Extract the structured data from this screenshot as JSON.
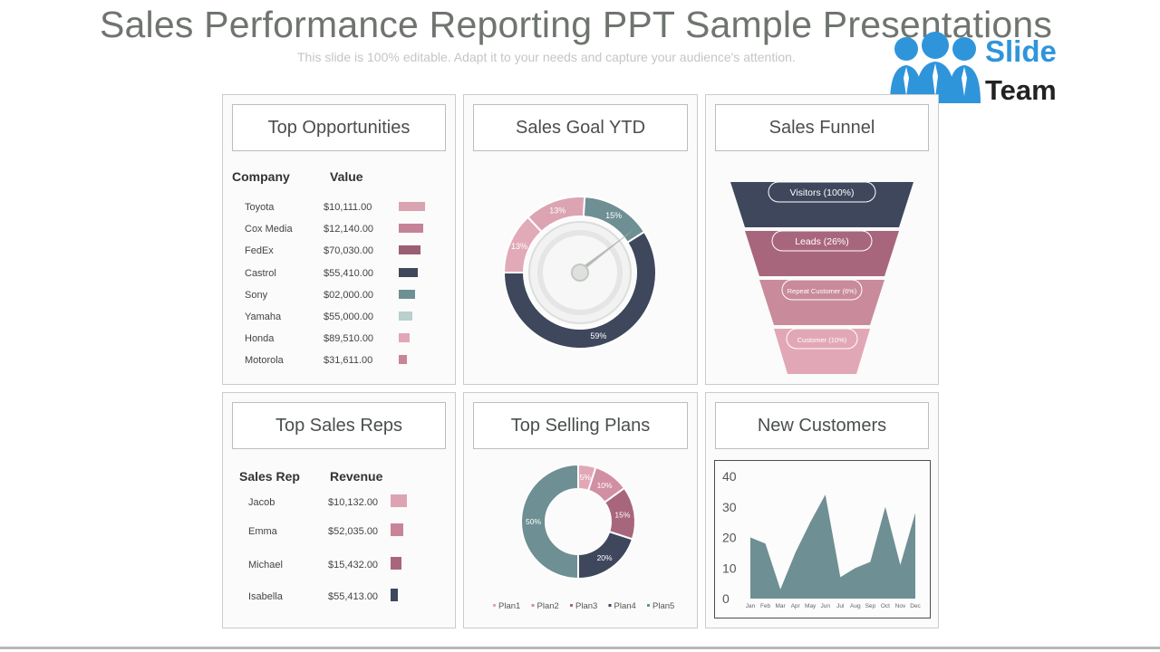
{
  "header": {
    "title": "Sales Performance Reporting PPT Sample Presentations",
    "subtitle": "This slide is 100% editable. Adapt it to your needs and capture your audience's attention."
  },
  "logo": {
    "line1": "Slide",
    "line2": "Team"
  },
  "colors": {
    "pink": "#d9a3b2",
    "rose": "#a8667c",
    "navy": "#3e475c",
    "teal": "#6e8f93",
    "mint": "#b9d0cd"
  },
  "top_opportunities": {
    "title": "Top Opportunities",
    "col_company": "Company",
    "col_value": "Value",
    "rows": [
      {
        "company": "Toyota",
        "value": "$10,111.00",
        "bar_fill": 1.0,
        "color": "#d9a3b2"
      },
      {
        "company": "Cox Media",
        "value": "$12,140.00",
        "bar_fill": 0.93,
        "color": "#c58398"
      },
      {
        "company": "FedEx",
        "value": "$70,030.00",
        "bar_fill": 0.83,
        "color": "#9c5e73"
      },
      {
        "company": "Castrol",
        "value": "$55,410.00",
        "bar_fill": 0.72,
        "color": "#3e475c"
      },
      {
        "company": "Sony",
        "value": "$02,000.00",
        "bar_fill": 0.62,
        "color": "#6e8f93"
      },
      {
        "company": "Yamaha",
        "value": "$55,000.00",
        "bar_fill": 0.52,
        "color": "#b9d0cd"
      },
      {
        "company": "Honda",
        "value": "$89,510.00",
        "bar_fill": 0.41,
        "color": "#e3a6b6"
      },
      {
        "company": "Motorola",
        "value": "$31,611.00",
        "bar_fill": 0.31,
        "color": "#c88597"
      }
    ]
  },
  "sales_goal": {
    "title": "Sales Goal YTD",
    "segments": [
      {
        "label": "13%",
        "value": 13,
        "color": "#e2aab8"
      },
      {
        "label": "13%",
        "value": 13,
        "color": "#dca4b3"
      },
      {
        "label": "15%",
        "value": 15,
        "color": "#6e8f93"
      },
      {
        "label": "59%",
        "value": 59,
        "color": "#3e475c"
      }
    ]
  },
  "sales_funnel": {
    "title": "Sales Funnel",
    "stages": [
      {
        "label": "Visitors (100%)",
        "color": "#3e475c"
      },
      {
        "label": "Leads (26%)",
        "color": "#a8667c"
      },
      {
        "label": "Repeat Customer (6%)",
        "color": "#c98a9c"
      },
      {
        "label": "Customer (10%)",
        "color": "#e2a7b6"
      }
    ]
  },
  "top_sales_reps": {
    "title": "Top Sales Reps",
    "col_rep": "Sales Rep",
    "col_revenue": "Revenue",
    "rows": [
      {
        "rep": "Jacob",
        "revenue": "$10,132.00",
        "bar_fill": 1.0,
        "color": "#dea3b2"
      },
      {
        "rep": "Emma",
        "revenue": "$52,035.00",
        "bar_fill": 0.8,
        "color": "#c88597"
      },
      {
        "rep": "Michael",
        "revenue": "$15,432.00",
        "bar_fill": 0.65,
        "color": "#a8667c"
      },
      {
        "rep": "Isabella",
        "revenue": "$55,413.00",
        "bar_fill": 0.45,
        "color": "#3e475c"
      }
    ]
  },
  "top_selling_plans": {
    "title": "Top Selling Plans",
    "segments": [
      {
        "name": "Plan1",
        "label": "5%",
        "value": 5,
        "color": "#e2a7b6"
      },
      {
        "name": "Plan2",
        "label": "10%",
        "value": 10,
        "color": "#d18fa3"
      },
      {
        "name": "Plan3",
        "label": "15%",
        "value": 15,
        "color": "#a8667c"
      },
      {
        "name": "Plan4",
        "label": "20%",
        "value": 20,
        "color": "#3e475c"
      },
      {
        "name": "Plan5",
        "label": "50%",
        "value": 50,
        "color": "#6e8f93"
      }
    ]
  },
  "new_customers": {
    "title": "New Customers",
    "chart_data": {
      "type": "area",
      "categories": [
        "Jan",
        "Feb",
        "Mar",
        "Apr",
        "May",
        "Jun",
        "Jul",
        "Aug",
        "Sep",
        "Oct",
        "Nov",
        "Dec"
      ],
      "values": [
        20,
        18,
        3,
        15,
        25,
        34,
        7,
        10,
        12,
        30,
        11,
        28
      ],
      "ylim": [
        0,
        40
      ],
      "yticks": [
        "0",
        "10",
        "20",
        "30",
        "40"
      ],
      "color": "#6e8f93"
    }
  }
}
